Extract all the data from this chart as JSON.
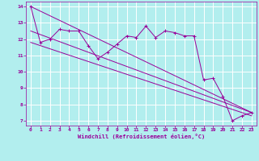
{
  "xlabel": "Windchill (Refroidissement éolien,°C)",
  "background_color": "#b2eeee",
  "grid_color": "#ffffff",
  "line_color": "#990099",
  "xlim": [
    -0.5,
    23.5
  ],
  "ylim": [
    6.7,
    14.3
  ],
  "xticks": [
    0,
    1,
    2,
    3,
    4,
    5,
    6,
    7,
    8,
    9,
    10,
    11,
    12,
    13,
    14,
    15,
    16,
    17,
    18,
    19,
    20,
    21,
    22,
    23
  ],
  "yticks": [
    7,
    8,
    9,
    10,
    11,
    12,
    13,
    14
  ],
  "series1_x": [
    0,
    1,
    2,
    3,
    4,
    5,
    6,
    7,
    8,
    9,
    10,
    11,
    12,
    13,
    14,
    15,
    16,
    17,
    18,
    19,
    20,
    21,
    22,
    23
  ],
  "series1_y": [
    14.0,
    11.8,
    12.0,
    12.6,
    12.5,
    12.5,
    11.6,
    10.8,
    11.2,
    11.7,
    12.2,
    12.1,
    12.8,
    12.1,
    12.5,
    12.4,
    12.2,
    12.2,
    9.5,
    9.6,
    8.5,
    7.0,
    7.3,
    7.5
  ],
  "series2_x": [
    0,
    23
  ],
  "series2_y": [
    14.0,
    7.5
  ],
  "series3_x": [
    0,
    23
  ],
  "series3_y": [
    11.8,
    7.3
  ],
  "series4_x": [
    0,
    23
  ],
  "series4_y": [
    12.5,
    7.5
  ],
  "marker": "+"
}
